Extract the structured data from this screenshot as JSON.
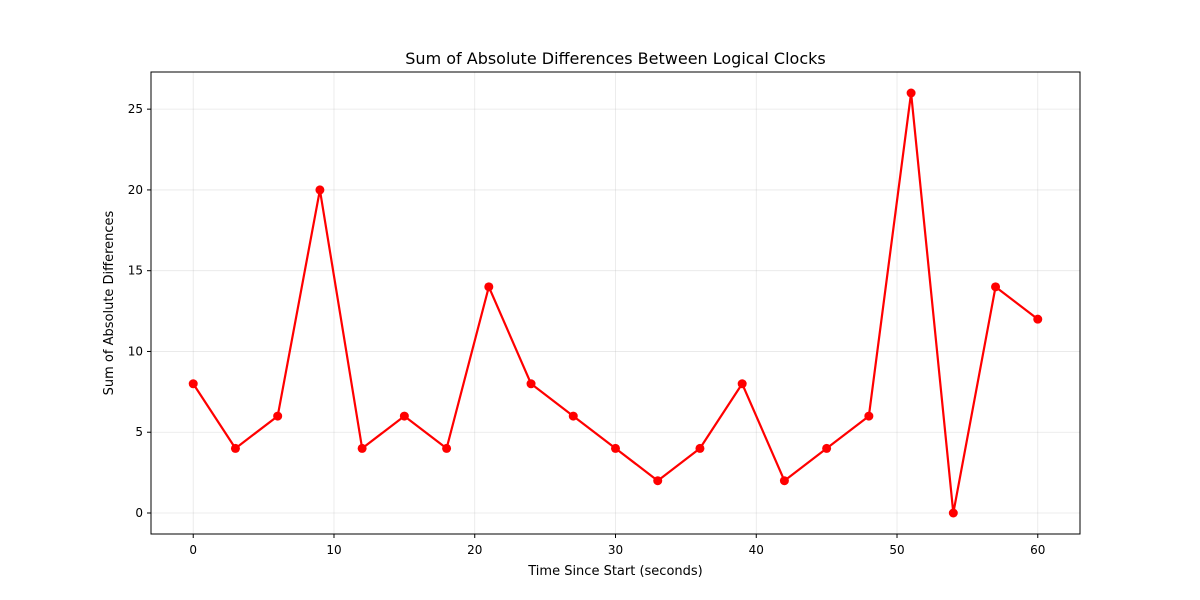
{
  "chart_data": {
    "type": "line",
    "title": "Sum of Absolute Differences Between Logical Clocks",
    "xlabel": "Time Since Start (seconds)",
    "ylabel": "Sum of Absolute Differences",
    "xlim": [
      -3,
      63
    ],
    "ylim": [
      -1.3,
      27.3
    ],
    "xticks": [
      0,
      10,
      20,
      30,
      40,
      50,
      60
    ],
    "yticks": [
      0,
      5,
      10,
      15,
      20,
      25
    ],
    "grid": true,
    "series": [
      {
        "color": "#ff0000",
        "marker": "circle",
        "x": [
          0,
          3,
          6,
          9,
          12,
          15,
          18,
          21,
          24,
          27,
          30,
          33,
          36,
          39,
          42,
          45,
          48,
          51,
          54,
          57,
          60
        ],
        "values": [
          8,
          4,
          6,
          20,
          4,
          6,
          4,
          14,
          8,
          6,
          4,
          2,
          4,
          8,
          2,
          4,
          6,
          26,
          0,
          14,
          12
        ]
      }
    ]
  }
}
